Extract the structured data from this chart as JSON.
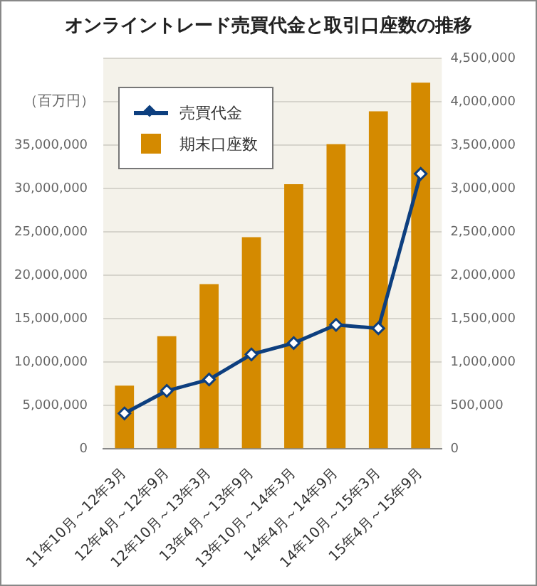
{
  "chart_data": {
    "type": "bar",
    "title": "オンライントレード売買代金と取引口座数の推移",
    "ylabel": "（百万円）",
    "categories": [
      "11年10月～12年3月",
      "12年4月～12年9月",
      "12年10月～13年3月",
      "13年4月～13年9月",
      "13年10月～14年3月",
      "14年4月～14年9月",
      "14年10月～15年3月",
      "15年4月～15年9月"
    ],
    "series": [
      {
        "name": "売買代金",
        "type": "line",
        "color": "#0d3f7f",
        "values": [
          4100000,
          6700000,
          8000000,
          10900000,
          12200000,
          14300000,
          13900000,
          31700000
        ]
      },
      {
        "name": "期末口座数",
        "axis": "y2",
        "color": "#d48a00",
        "values": [
          730000,
          1300000,
          1900000,
          2440000,
          3050000,
          3510000,
          3890000,
          4220000
        ]
      }
    ],
    "ylim": [
      0,
      45000000
    ],
    "yticks": [
      0,
      {
        "value": 5000000,
        "label": "5,000,000"
      },
      {
        "value": 10000000,
        "label": "10,000,000"
      },
      {
        "value": 15000000,
        "label": "15,000,000"
      },
      {
        "value": 20000000,
        "label": "20,000,000"
      },
      {
        "value": 25000000,
        "label": "25,000,000"
      },
      {
        "value": 30000000,
        "label": "30,000,000"
      },
      {
        "value": 35000000,
        "label": "35,000,000"
      }
    ],
    "y2lim": [
      0,
      4500000
    ],
    "y2ticks": [
      0,
      {
        "value": 500000,
        "label": "500,000"
      },
      {
        "value": 1000000,
        "label": "1,000,000"
      },
      {
        "value": 1500000,
        "label": "1,500,000"
      },
      {
        "value": 2000000,
        "label": "2,000,000"
      },
      {
        "value": 2500000,
        "label": "2,500,000"
      },
      {
        "value": 3000000,
        "label": "3,000,000"
      },
      {
        "value": 3500000,
        "label": "3,500,000"
      },
      {
        "value": 4000000,
        "label": "4,000,000"
      },
      {
        "value": 4500000,
        "label": "4,500,000"
      }
    ],
    "grid": "y",
    "legend": "top left",
    "marker": "diamond",
    "line_style": "solid"
  }
}
